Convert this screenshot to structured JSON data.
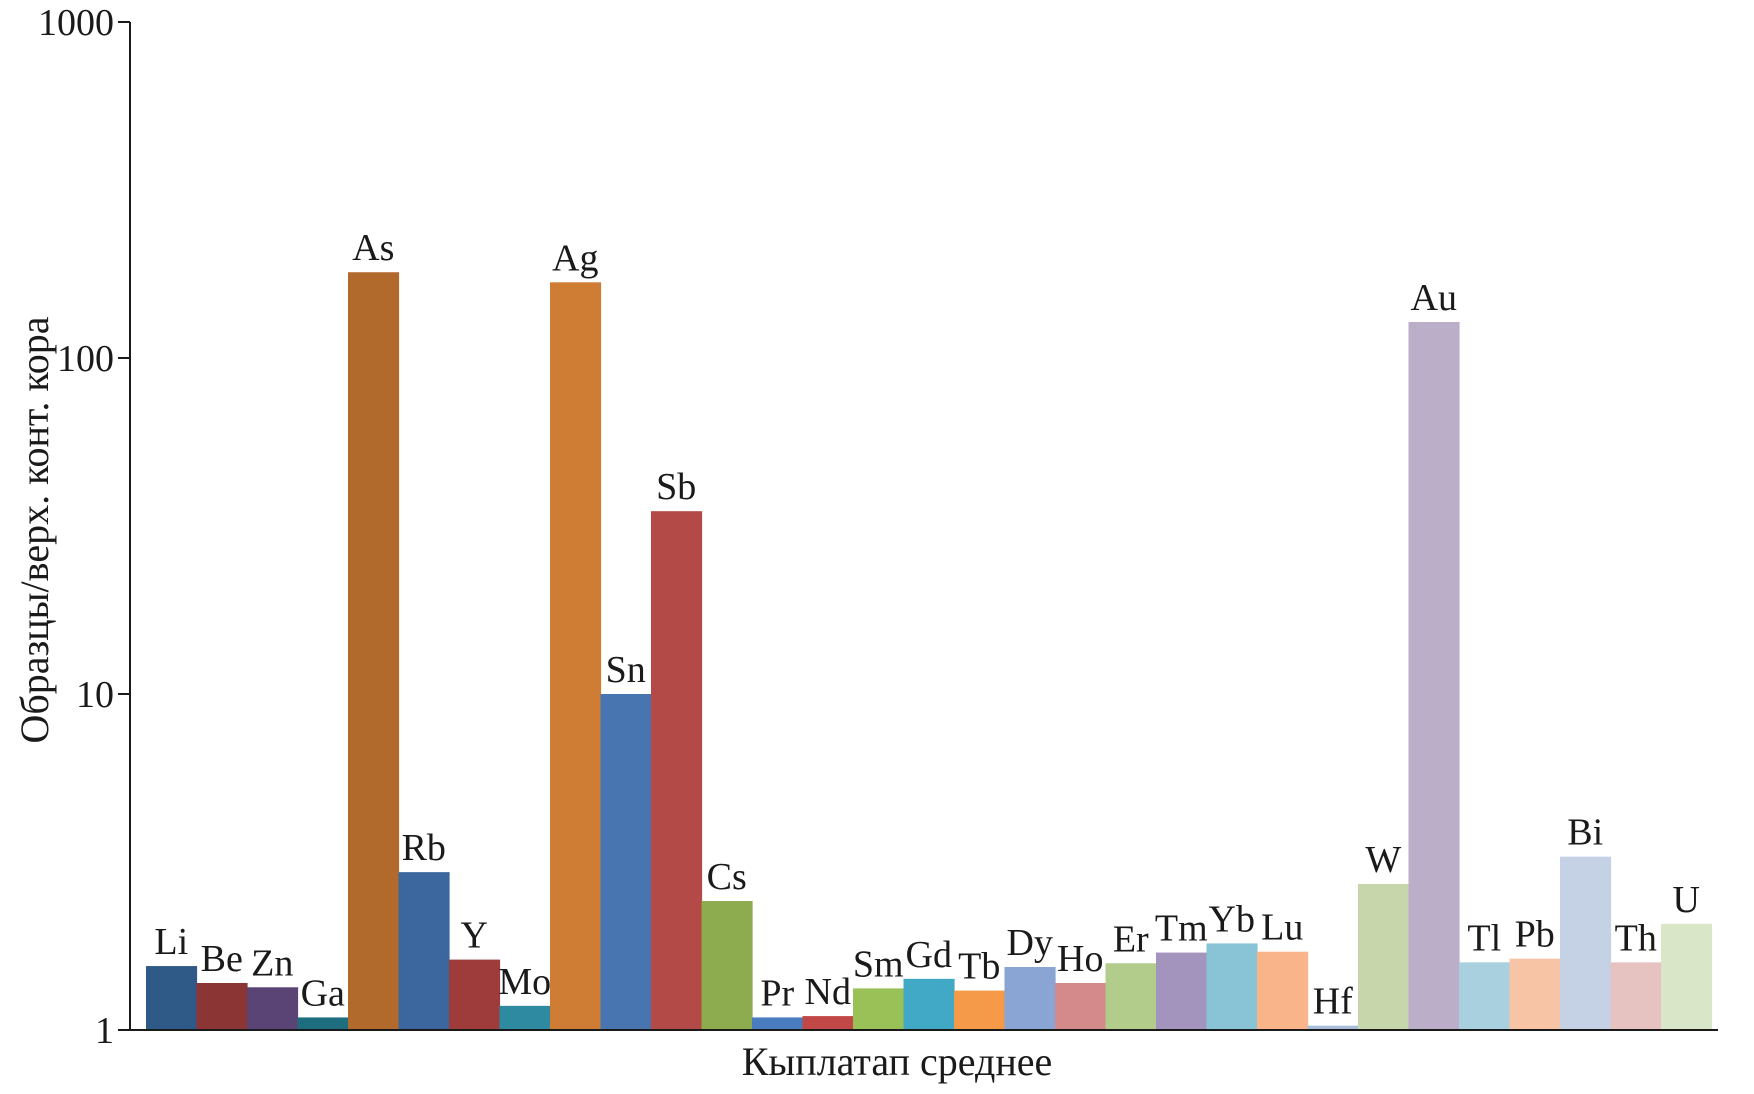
{
  "chart_data": {
    "type": "bar",
    "title": "",
    "xlabel": "Кыплатап среднее",
    "ylabel": "Образцы/верх. конт. кора",
    "y_scale": "log",
    "ylim": [
      1,
      1000
    ],
    "y_ticks": [
      {
        "value": 1,
        "label": "1"
      },
      {
        "value": 10,
        "label": "10"
      },
      {
        "value": 100,
        "label": "100"
      },
      {
        "value": 1000,
        "label": "1000"
      }
    ],
    "grid": false,
    "legend": "none",
    "categories": [
      "Li",
      "Be",
      "Zn",
      "Ga",
      "As",
      "Rb",
      "Y",
      "Mo",
      "Ag",
      "Sn",
      "Sb",
      "Cs",
      "Pr",
      "Nd",
      "Sm",
      "Gd",
      "Tb",
      "Dy",
      "Ho",
      "Er",
      "Tm",
      "Yb",
      "Lu",
      "Hf",
      "W",
      "Au",
      "Tl",
      "Pb",
      "Bi",
      "Th",
      "U"
    ],
    "values": [
      1.55,
      1.38,
      1.34,
      1.09,
      180,
      2.95,
      1.62,
      1.18,
      168,
      10.0,
      35,
      2.42,
      1.09,
      1.1,
      1.33,
      1.42,
      1.31,
      1.54,
      1.38,
      1.58,
      1.7,
      1.81,
      1.71,
      1.03,
      2.72,
      128,
      1.59,
      1.63,
      3.28,
      1.59,
      2.07
    ],
    "colors": [
      "#2f5987",
      "#8b3535",
      "#5a4375",
      "#1f6e80",
      "#b26a2c",
      "#3c679e",
      "#9e3b3b",
      "#2e8aa0",
      "#cf7c35",
      "#4874b0",
      "#b44a47",
      "#8dab4f",
      "#4a7cc0",
      "#c24747",
      "#9ac158",
      "#41a9c6",
      "#f59a48",
      "#8aa4d3",
      "#d48a8a",
      "#b2cc8b",
      "#a394bd",
      "#88c3d6",
      "#f9b48a",
      "#a9bcd8",
      "#c8d7ab",
      "#baaec9",
      "#a9d0df",
      "#f8c4a6",
      "#c5d1e5",
      "#e6c3c1",
      "#d9e6c7"
    ]
  }
}
